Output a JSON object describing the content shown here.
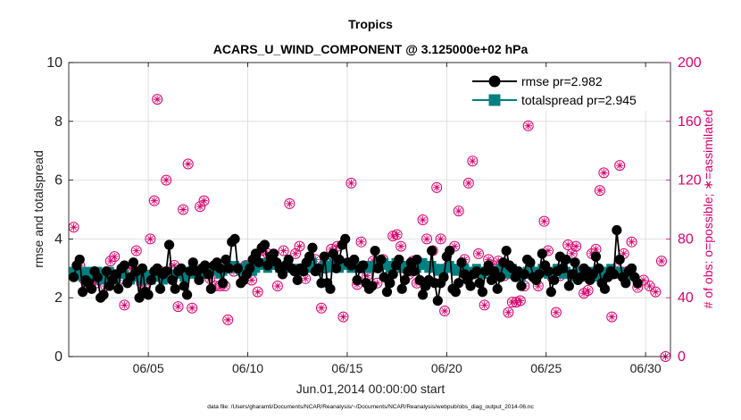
{
  "chart_data": {
    "type": "line",
    "title": "Tropics",
    "subtitle": "ACARS_U_WIND_COMPONENT @ 3.125000e+02 hPa",
    "xlabel": "Jun.01,2014 00:00:00 start",
    "ylabel": "rmse and totalspread",
    "ylabel_right": "# of obs: o=possible; ∗=assimilated",
    "footnote": "data file: /Users/gharamti/Documents/NCAR/Reanalysis/~/Documents/NCAR/Reanalysis/webpub/obs_diag_output_2014-06.nc",
    "xlim": [
      1.0,
      31.25
    ],
    "ylim": [
      0,
      10
    ],
    "ylim_right": [
      0,
      200
    ],
    "x_ticks": [
      5,
      10,
      15,
      20,
      25,
      30
    ],
    "x_tick_labels": [
      "06/05",
      "06/10",
      "06/15",
      "06/20",
      "06/25",
      "06/30"
    ],
    "y_ticks": [
      0,
      2,
      4,
      6,
      8,
      10
    ],
    "y_tick_labels": [
      "0",
      "2",
      "4",
      "6",
      "8",
      "10"
    ],
    "y_right_ticks": [
      0,
      40,
      80,
      120,
      160,
      200
    ],
    "y_right_tick_labels": [
      "0",
      "40",
      "80",
      "120",
      "160",
      "200"
    ],
    "grid": true,
    "legend_position": "top-right",
    "colors": {
      "rmse": "#000000",
      "totalspread": "#008080",
      "obs": "#d9006c",
      "grid": "#d9d9d9"
    },
    "series": [
      {
        "name": "rmse pr=2.982",
        "axis": "left",
        "marker": "circle",
        "color": "#000000",
        "values": [
          2.7,
          3.1,
          3.3,
          2.2,
          2.6,
          2.5,
          2.3,
          2.9,
          2.7,
          2.0,
          2.1,
          2.9,
          2.4,
          2.6,
          2.8,
          2.3,
          3.0,
          3.1,
          2.5,
          2.7,
          3.2,
          2.9,
          2.0,
          3.0,
          2.2,
          2.1,
          2.6,
          2.9,
          3.0,
          2.3,
          2.8,
          2.9,
          3.8,
          2.6,
          2.3,
          2.9,
          3.0,
          2.4,
          2.1,
          2.9,
          3.2,
          2.9,
          2.6,
          3.0,
          3.1,
          2.8,
          2.3,
          3.1,
          3.2,
          3.0,
          2.5,
          3.3,
          3.0,
          3.9,
          4.0,
          3.0,
          2.5,
          2.6,
          2.8,
          3.0,
          3.3,
          3.5,
          3.2,
          3.7,
          3.8,
          3.1,
          3.4,
          3.5,
          3.2,
          3.0,
          2.8,
          3.1,
          3.3,
          3.0,
          2.9,
          2.6,
          3.0,
          2.9,
          3.2,
          3.4,
          3.7,
          2.9,
          3.0,
          2.5,
          3.4,
          2.5,
          2.3,
          3.5,
          3.0,
          3.3,
          3.8,
          4.0,
          3.2,
          3.1,
          3.3,
          2.6,
          3.0,
          3.1,
          2.5,
          2.3,
          2.4,
          3.6,
          3.0,
          3.3,
          2.7,
          2.2,
          2.5,
          2.8,
          3.1,
          3.3,
          2.3,
          2.6,
          2.9,
          3.2,
          2.9,
          3.3,
          2.6,
          2.1,
          2.4,
          2.6,
          3.6,
          2.5,
          1.9,
          2.5,
          2.7,
          3.4,
          3.6,
          2.3,
          2.2,
          2.5,
          3.2,
          2.8,
          2.6,
          2.4,
          2.8,
          2.9,
          2.5,
          2.2,
          2.9,
          3.1,
          2.6,
          2.9,
          2.3,
          2.7,
          3.2,
          3.6,
          3.1,
          3.0,
          2.7,
          2.9,
          2.4,
          2.8,
          3.3,
          3.2,
          2.7,
          2.6,
          2.8,
          3.5,
          3.1,
          2.9,
          2.2,
          2.6,
          2.9,
          3.4,
          3.0,
          3.3,
          2.4,
          2.8,
          3.2,
          2.6,
          2.7,
          3.0,
          2.9,
          2.6,
          2.8,
          3.4,
          3.0,
          2.5,
          2.3,
          2.7,
          2.9,
          2.8,
          4.3,
          3.3,
          2.7,
          2.5,
          2.9,
          3.0,
          2.7,
          2.5
        ]
      },
      {
        "name": "totalspread pr=2.945",
        "axis": "left",
        "marker": "square",
        "color": "#008080",
        "values": [
          2.9,
          2.8,
          2.9,
          2.7,
          2.8,
          2.9,
          2.7,
          2.8,
          2.9,
          2.6,
          2.7,
          2.8,
          2.9,
          2.7,
          2.6,
          2.8,
          2.9,
          2.8,
          2.7,
          2.6,
          2.7,
          2.8,
          2.7,
          2.6,
          2.8,
          2.7,
          2.6,
          2.7,
          2.8,
          2.7,
          2.6,
          2.7,
          2.8,
          2.7,
          2.8,
          2.9,
          2.8,
          2.7,
          2.8,
          2.9,
          3.0,
          2.8,
          2.7,
          2.8,
          2.9,
          2.8,
          2.9,
          3.0,
          2.9,
          2.8,
          2.9,
          3.0,
          3.1,
          3.0,
          3.1,
          3.0,
          2.9,
          3.0,
          3.1,
          3.0,
          2.9,
          3.0,
          3.1,
          3.2,
          3.1,
          3.0,
          3.1,
          3.2,
          3.1,
          3.0,
          3.0,
          3.0,
          3.1,
          3.0,
          3.0,
          2.9,
          3.0,
          2.9,
          3.0,
          3.1,
          3.2,
          3.0,
          2.9,
          3.0,
          3.1,
          3.0,
          3.1,
          3.2,
          3.1,
          3.0,
          3.1,
          3.2,
          3.1,
          3.0,
          3.1,
          3.0,
          3.0,
          3.1,
          3.0,
          3.1,
          3.0,
          3.1,
          3.2,
          3.1,
          3.2,
          3.1,
          3.0,
          3.1,
          3.2,
          3.1,
          3.0,
          3.0,
          3.1,
          3.0,
          2.9,
          3.0,
          3.1,
          3.2,
          3.1,
          3.0,
          3.1,
          3.0,
          2.9,
          3.0,
          2.9,
          3.0,
          3.1,
          3.0,
          2.9,
          3.0,
          3.1,
          3.0,
          2.9,
          2.8,
          2.9,
          3.0,
          2.9,
          2.8,
          2.9,
          3.0,
          2.9,
          2.8,
          2.9,
          3.0,
          2.9,
          2.8,
          2.9,
          3.0,
          2.9,
          2.8,
          2.7,
          2.8,
          2.9,
          3.0,
          2.9,
          2.8,
          2.9,
          3.0,
          2.9,
          2.8,
          2.8,
          2.9,
          3.0,
          2.9,
          2.8,
          2.9,
          2.8,
          2.7,
          2.8,
          2.9,
          2.8,
          2.7,
          2.8,
          2.9,
          2.8,
          2.7,
          2.8,
          2.9,
          2.8,
          2.9,
          3.0,
          2.9,
          2.8,
          2.9,
          2.8,
          2.7,
          2.8,
          2.9
        ]
      },
      {
        "name": "# of obs (possible / assimilated)",
        "axis": "right",
        "marker": "circle-star",
        "color": "#d9006c",
        "points": [
          [
            1.25,
            88
          ],
          [
            1.55,
            62
          ],
          [
            1.8,
            52
          ],
          [
            2.1,
            48
          ],
          [
            2.35,
            50
          ],
          [
            2.6,
            55
          ],
          [
            2.85,
            48
          ],
          [
            3.1,
            65
          ],
          [
            3.3,
            68
          ],
          [
            3.5,
            52
          ],
          [
            3.8,
            35
          ],
          [
            4.1,
            60
          ],
          [
            4.4,
            72
          ],
          [
            4.65,
            50
          ],
          [
            4.9,
            50
          ],
          [
            5.1,
            80
          ],
          [
            5.3,
            106
          ],
          [
            5.45,
            175
          ],
          [
            5.6,
            58
          ],
          [
            5.9,
            120
          ],
          [
            6.1,
            55
          ],
          [
            6.3,
            62
          ],
          [
            6.5,
            34
          ],
          [
            6.75,
            100
          ],
          [
            7.0,
            131
          ],
          [
            7.2,
            33
          ],
          [
            7.4,
            58
          ],
          [
            7.6,
            102
          ],
          [
            7.8,
            106
          ],
          [
            8.1,
            53
          ],
          [
            8.35,
            48
          ],
          [
            8.6,
            48
          ],
          [
            8.85,
            48
          ],
          [
            9.0,
            25
          ],
          [
            9.3,
            58
          ],
          [
            9.6,
            60
          ],
          [
            9.9,
            62
          ],
          [
            10.2,
            52
          ],
          [
            10.5,
            44
          ],
          [
            10.7,
            72
          ],
          [
            11.0,
            70
          ],
          [
            11.3,
            65
          ],
          [
            11.5,
            48
          ],
          [
            11.8,
            72
          ],
          [
            12.1,
            104
          ],
          [
            12.4,
            70
          ],
          [
            12.6,
            75
          ],
          [
            12.9,
            53
          ],
          [
            13.2,
            62
          ],
          [
            13.4,
            66
          ],
          [
            13.7,
            33
          ],
          [
            13.9,
            60
          ],
          [
            14.2,
            73
          ],
          [
            14.5,
            75
          ],
          [
            14.8,
            27
          ],
          [
            15.0,
            63
          ],
          [
            15.2,
            118
          ],
          [
            15.5,
            49
          ],
          [
            15.7,
            78
          ],
          [
            16.0,
            55
          ],
          [
            16.3,
            65
          ],
          [
            16.5,
            50
          ],
          [
            16.8,
            66
          ],
          [
            17.1,
            55
          ],
          [
            17.3,
            82
          ],
          [
            17.5,
            83
          ],
          [
            17.7,
            75
          ],
          [
            17.9,
            60
          ],
          [
            18.1,
            56
          ],
          [
            18.3,
            65
          ],
          [
            18.5,
            50
          ],
          [
            18.8,
            93
          ],
          [
            19.0,
            80
          ],
          [
            19.3,
            72
          ],
          [
            19.5,
            115
          ],
          [
            19.7,
            80
          ],
          [
            19.9,
            31
          ],
          [
            20.1,
            62
          ],
          [
            20.4,
            75
          ],
          [
            20.6,
            99
          ],
          [
            20.9,
            66
          ],
          [
            21.1,
            118
          ],
          [
            21.3,
            133
          ],
          [
            21.6,
            70
          ],
          [
            21.9,
            35
          ],
          [
            22.1,
            66
          ],
          [
            22.3,
            62
          ],
          [
            22.6,
            65
          ],
          [
            22.9,
            55
          ],
          [
            23.1,
            30
          ],
          [
            23.3,
            37
          ],
          [
            23.5,
            37
          ],
          [
            23.7,
            38
          ],
          [
            23.9,
            48
          ],
          [
            24.1,
            157
          ],
          [
            24.3,
            55
          ],
          [
            24.6,
            48
          ],
          [
            24.9,
            92
          ],
          [
            25.1,
            72
          ],
          [
            25.3,
            54
          ],
          [
            25.5,
            30
          ],
          [
            25.7,
            55
          ],
          [
            25.9,
            58
          ],
          [
            26.1,
            76
          ],
          [
            26.3,
            70
          ],
          [
            26.5,
            75
          ],
          [
            26.7,
            58
          ],
          [
            26.9,
            43
          ],
          [
            27.1,
            45
          ],
          [
            27.3,
            70
          ],
          [
            27.5,
            73
          ],
          [
            27.7,
            113
          ],
          [
            27.9,
            125
          ],
          [
            28.1,
            55
          ],
          [
            28.3,
            27
          ],
          [
            28.5,
            60
          ],
          [
            28.7,
            130
          ],
          [
            28.9,
            70
          ],
          [
            29.1,
            58
          ],
          [
            29.3,
            78
          ],
          [
            29.6,
            47
          ],
          [
            29.9,
            52
          ],
          [
            30.2,
            48
          ],
          [
            30.5,
            44
          ],
          [
            30.8,
            65
          ],
          [
            31.0,
            0
          ]
        ]
      }
    ]
  }
}
